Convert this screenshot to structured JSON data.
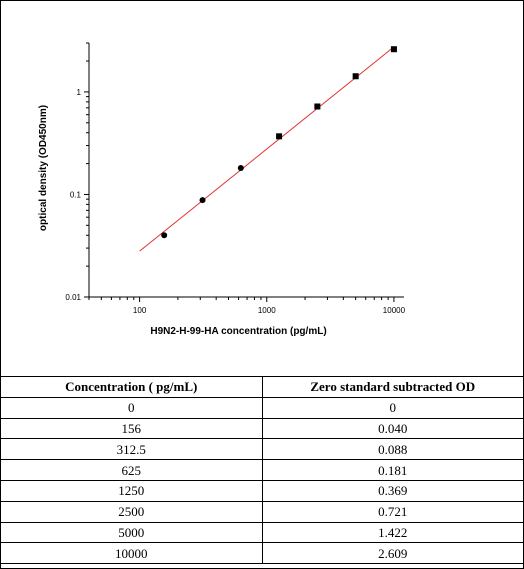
{
  "chart_data": {
    "type": "scatter",
    "title": "",
    "xlabel": "H9N2-H-99-HA concentration (pg/mL)",
    "ylabel": "optical density (OD450nm)",
    "x_scale": "log",
    "y_scale": "log",
    "xlim": [
      40,
      12000
    ],
    "ylim": [
      0.01,
      3
    ],
    "x_ticks": [
      100,
      1000,
      10000
    ],
    "x_tick_labels": [
      "100",
      "1000",
      "10000"
    ],
    "y_ticks": [
      0.01,
      0.1,
      1
    ],
    "y_tick_labels": [
      "0.01",
      "0.1",
      "1"
    ],
    "grid": false,
    "series": [
      {
        "x": [
          156,
          312.5,
          625,
          1250,
          2500,
          5000,
          10000
        ],
        "y": [
          0.04,
          0.088,
          0.181,
          0.369,
          0.721,
          1.422,
          2.609
        ]
      }
    ],
    "fit_line": {
      "x": [
        100,
        10000
      ],
      "y": [
        0.028,
        2.75
      ],
      "color": "#e03030"
    },
    "marker_color": "#000000"
  },
  "table": {
    "headers": [
      "Concentration ( pg/mL)",
      "Zero standard subtracted OD"
    ],
    "rows": [
      [
        "0",
        "0"
      ],
      [
        "156",
        "0.040"
      ],
      [
        "312.5",
        "0.088"
      ],
      [
        "625",
        "0.181"
      ],
      [
        "1250",
        "0.369"
      ],
      [
        "2500",
        "0.721"
      ],
      [
        "5000",
        "1.422"
      ],
      [
        "10000",
        "2.609"
      ]
    ]
  }
}
